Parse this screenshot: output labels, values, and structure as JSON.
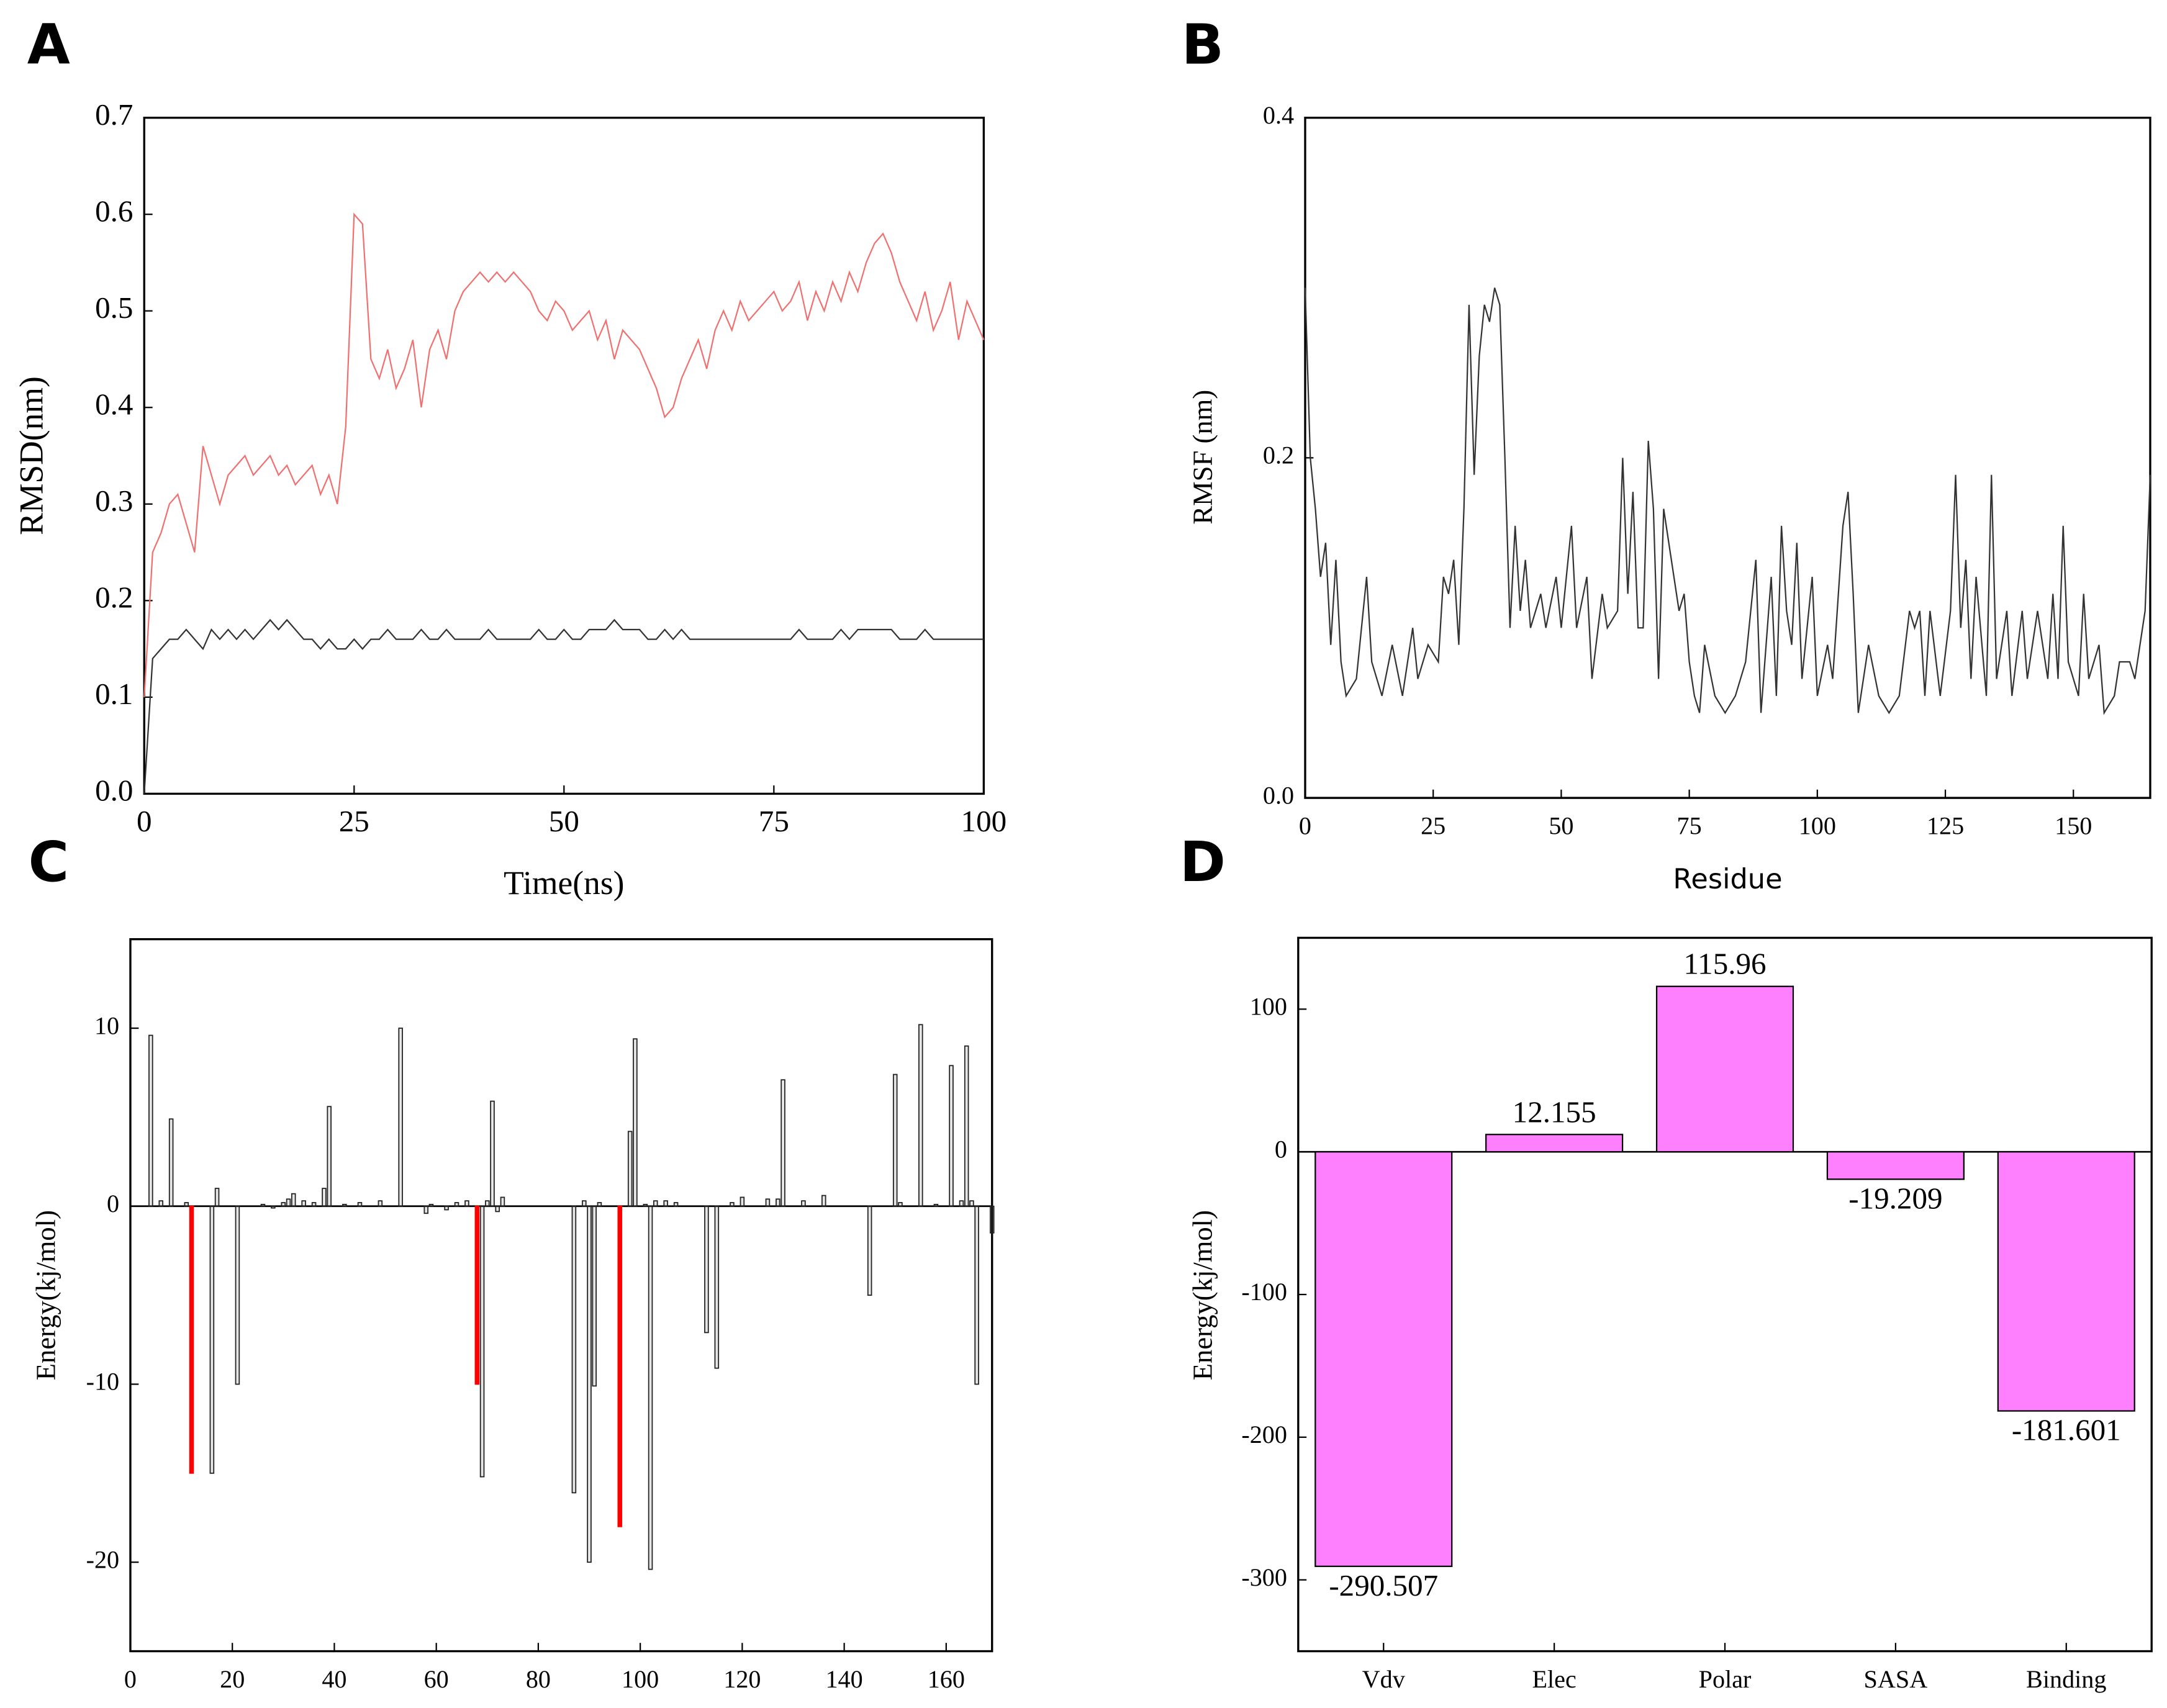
{
  "chart_data": [
    {
      "type": "line",
      "panel_label": "A",
      "xlabel": "Time(ns)",
      "ylabel": "RMSD(nm)",
      "xlim": [
        0,
        100
      ],
      "ylim": [
        0,
        0.7
      ],
      "xticks": [
        0,
        25,
        50,
        75,
        100
      ],
      "yticks": [
        {
          "value": 0,
          "label": "0.0"
        },
        0.1,
        0.2,
        0.3,
        0.4,
        0.5,
        0.6,
        0.7
      ],
      "x": [
        0,
        1,
        2,
        3,
        4,
        5,
        6,
        7,
        8,
        9,
        10,
        11,
        12,
        13,
        14,
        15,
        16,
        17,
        18,
        19,
        20,
        21,
        22,
        23,
        24,
        25,
        26,
        27,
        28,
        29,
        30,
        31,
        32,
        33,
        34,
        35,
        36,
        37,
        38,
        39,
        40,
        41,
        42,
        43,
        44,
        45,
        46,
        47,
        48,
        49,
        50,
        51,
        52,
        53,
        54,
        55,
        56,
        57,
        58,
        59,
        60,
        61,
        62,
        63,
        64,
        65,
        66,
        67,
        68,
        69,
        70,
        71,
        72,
        73,
        74,
        75,
        76,
        77,
        78,
        79,
        80,
        81,
        82,
        83,
        84,
        85,
        86,
        87,
        88,
        89,
        90,
        91,
        92,
        93,
        94,
        95,
        96,
        97,
        98,
        99,
        100
      ],
      "series": [
        {
          "color": "#f07070",
          "values": [
            0.1,
            0.25,
            0.27,
            0.3,
            0.31,
            0.28,
            0.25,
            0.36,
            0.33,
            0.3,
            0.33,
            0.34,
            0.35,
            0.33,
            0.34,
            0.35,
            0.33,
            0.34,
            0.32,
            0.33,
            0.34,
            0.31,
            0.33,
            0.3,
            0.38,
            0.6,
            0.59,
            0.45,
            0.43,
            0.46,
            0.42,
            0.44,
            0.47,
            0.4,
            0.46,
            0.48,
            0.45,
            0.5,
            0.52,
            0.53,
            0.54,
            0.53,
            0.54,
            0.53,
            0.54,
            0.53,
            0.52,
            0.5,
            0.49,
            0.51,
            0.5,
            0.48,
            0.49,
            0.5,
            0.47,
            0.49,
            0.45,
            0.48,
            0.47,
            0.46,
            0.44,
            0.42,
            0.39,
            0.4,
            0.43,
            0.45,
            0.47,
            0.44,
            0.48,
            0.5,
            0.48,
            0.51,
            0.49,
            0.5,
            0.51,
            0.52,
            0.5,
            0.51,
            0.53,
            0.49,
            0.52,
            0.5,
            0.53,
            0.51,
            0.54,
            0.52,
            0.55,
            0.57,
            0.58,
            0.56,
            0.53,
            0.51,
            0.49,
            0.52,
            0.48,
            0.5,
            0.53,
            0.47,
            0.51,
            0.49,
            0.47
          ]
        },
        {
          "color": "#333333",
          "values": [
            0.0,
            0.14,
            0.15,
            0.16,
            0.16,
            0.17,
            0.16,
            0.15,
            0.17,
            0.16,
            0.17,
            0.16,
            0.17,
            0.16,
            0.17,
            0.18,
            0.17,
            0.18,
            0.17,
            0.16,
            0.16,
            0.15,
            0.16,
            0.15,
            0.15,
            0.16,
            0.15,
            0.16,
            0.16,
            0.17,
            0.16,
            0.16,
            0.16,
            0.17,
            0.16,
            0.16,
            0.17,
            0.16,
            0.16,
            0.16,
            0.16,
            0.17,
            0.16,
            0.16,
            0.16,
            0.16,
            0.16,
            0.17,
            0.16,
            0.16,
            0.17,
            0.16,
            0.16,
            0.17,
            0.17,
            0.17,
            0.18,
            0.17,
            0.17,
            0.17,
            0.16,
            0.16,
            0.17,
            0.16,
            0.17,
            0.16,
            0.16,
            0.16,
            0.16,
            0.16,
            0.16,
            0.16,
            0.16,
            0.16,
            0.16,
            0.16,
            0.16,
            0.16,
            0.17,
            0.16,
            0.16,
            0.16,
            0.16,
            0.17,
            0.16,
            0.17,
            0.17,
            0.17,
            0.17,
            0.17,
            0.16,
            0.16,
            0.16,
            0.17,
            0.16,
            0.16,
            0.16,
            0.16,
            0.16,
            0.16,
            0.16
          ]
        }
      ]
    },
    {
      "type": "line",
      "panel_label": "B",
      "xlabel": "Residue",
      "ylabel": "RMSF (nm)",
      "xlim": [
        0,
        165
      ],
      "ylim": [
        0,
        0.4
      ],
      "xticks": [
        0,
        25,
        50,
        75,
        100,
        125,
        150
      ],
      "yticks": [
        {
          "value": 0,
          "label": "0.0"
        },
        0.2,
        0.4
      ],
      "x": [
        0,
        1,
        2,
        3,
        4,
        5,
        6,
        7,
        8,
        10,
        12,
        13,
        15,
        17,
        19,
        21,
        22,
        24,
        26,
        27,
        28,
        29,
        30,
        31,
        32,
        33,
        34,
        35,
        36,
        37,
        38,
        39,
        40,
        41,
        42,
        43,
        44,
        46,
        47,
        49,
        50,
        52,
        53,
        55,
        56,
        58,
        59,
        61,
        62,
        63,
        64,
        65,
        66,
        67,
        68,
        69,
        70,
        71,
        72,
        73,
        74,
        75,
        76,
        77,
        78,
        80,
        82,
        84,
        86,
        88,
        89,
        91,
        92,
        93,
        94,
        95,
        96,
        97,
        99,
        100,
        102,
        103,
        105,
        106,
        107,
        108,
        110,
        112,
        114,
        116,
        118,
        119,
        120,
        121,
        122,
        124,
        126,
        127,
        128,
        129,
        130,
        131,
        133,
        134,
        135,
        137,
        138,
        140,
        141,
        143,
        145,
        146,
        147,
        148,
        149,
        151,
        152,
        153,
        155,
        156,
        158,
        159,
        161,
        162,
        163,
        164,
        165
      ],
      "series": [
        {
          "color": "#333333",
          "values": [
            0.3,
            0.2,
            0.17,
            0.13,
            0.15,
            0.09,
            0.14,
            0.08,
            0.06,
            0.07,
            0.13,
            0.08,
            0.06,
            0.09,
            0.06,
            0.1,
            0.07,
            0.09,
            0.08,
            0.13,
            0.12,
            0.14,
            0.09,
            0.17,
            0.29,
            0.19,
            0.26,
            0.29,
            0.28,
            0.3,
            0.29,
            0.2,
            0.1,
            0.16,
            0.11,
            0.14,
            0.1,
            0.12,
            0.1,
            0.13,
            0.1,
            0.16,
            0.1,
            0.13,
            0.07,
            0.12,
            0.1,
            0.11,
            0.2,
            0.12,
            0.18,
            0.1,
            0.1,
            0.21,
            0.17,
            0.07,
            0.17,
            0.15,
            0.13,
            0.11,
            0.12,
            0.08,
            0.06,
            0.05,
            0.09,
            0.06,
            0.05,
            0.06,
            0.08,
            0.14,
            0.05,
            0.13,
            0.06,
            0.16,
            0.11,
            0.09,
            0.15,
            0.07,
            0.13,
            0.06,
            0.09,
            0.07,
            0.16,
            0.18,
            0.12,
            0.05,
            0.09,
            0.06,
            0.05,
            0.06,
            0.11,
            0.1,
            0.11,
            0.06,
            0.11,
            0.06,
            0.11,
            0.19,
            0.1,
            0.14,
            0.07,
            0.13,
            0.06,
            0.19,
            0.07,
            0.11,
            0.06,
            0.11,
            0.07,
            0.11,
            0.07,
            0.12,
            0.07,
            0.16,
            0.08,
            0.06,
            0.12,
            0.07,
            0.09,
            0.05,
            0.06,
            0.08,
            0.08,
            0.07,
            0.09,
            0.11,
            0.19
          ]
        }
      ]
    },
    {
      "type": "bar",
      "panel_label": "C",
      "ylabel": "Energy(kj/mol)",
      "xlim": [
        0,
        169
      ],
      "ylim": [
        -25,
        15
      ],
      "xticks": [
        0,
        20,
        40,
        60,
        80,
        100,
        120,
        140,
        160
      ],
      "yticks": [
        -20,
        -10,
        0,
        10
      ],
      "x": [
        4,
        6,
        8,
        11,
        12,
        16,
        17,
        21,
        26,
        28,
        30,
        31,
        32,
        34,
        36,
        38,
        39,
        42,
        45,
        49,
        53,
        58,
        59,
        62,
        64,
        66,
        68,
        69,
        70,
        71,
        72,
        73,
        87,
        89,
        90,
        91,
        92,
        96,
        98,
        99,
        101,
        102,
        103,
        105,
        107,
        113,
        115,
        118,
        120,
        125,
        127,
        128,
        132,
        136,
        145,
        150,
        151,
        155,
        158,
        161,
        163,
        164,
        165,
        166,
        169
      ],
      "values": [
        9.6,
        0.3,
        4.9,
        0.2,
        -15,
        -15,
        1.0,
        -10,
        0.1,
        -0.1,
        0.2,
        0.4,
        0.7,
        0.3,
        0.2,
        1.0,
        5.6,
        0.1,
        0.2,
        0.3,
        10,
        -0.4,
        0.1,
        -0.2,
        0.2,
        0.3,
        -10,
        -15.2,
        0.3,
        5.9,
        -0.3,
        0.5,
        -16.1,
        0.3,
        -20,
        -10.1,
        0.2,
        -18,
        4.2,
        9.4,
        0.1,
        -20.4,
        0.3,
        0.3,
        0.2,
        -7.1,
        -9.1,
        0.2,
        0.5,
        0.4,
        0.4,
        7.1,
        0.3,
        0.6,
        -5,
        7.4,
        0.2,
        10.2,
        0.1,
        7.9,
        0.3,
        9,
        0.3,
        -10,
        -1.5
      ],
      "colors": [
        "#555555",
        "#555555",
        "#555555",
        "#555555",
        "#ff0000",
        "#555555",
        "#555555",
        "#555555",
        "#555555",
        "#555555",
        "#555555",
        "#555555",
        "#555555",
        "#555555",
        "#555555",
        "#555555",
        "#555555",
        "#555555",
        "#555555",
        "#555555",
        "#555555",
        "#555555",
        "#555555",
        "#555555",
        "#555555",
        "#555555",
        "#ff0000",
        "#555555",
        "#555555",
        "#555555",
        "#555555",
        "#555555",
        "#555555",
        "#555555",
        "#555555",
        "#555555",
        "#555555",
        "#ff0000",
        "#555555",
        "#555555",
        "#555555",
        "#555555",
        "#555555",
        "#555555",
        "#555555",
        "#555555",
        "#555555",
        "#555555",
        "#555555",
        "#555555",
        "#555555",
        "#555555",
        "#555555",
        "#555555",
        "#555555",
        "#555555",
        "#555555",
        "#555555",
        "#555555",
        "#555555",
        "#555555",
        "#555555",
        "#555555",
        "#555555",
        "#555555"
      ]
    },
    {
      "type": "bar",
      "panel_label": "D",
      "ylabel": "Energy(kj/mol)",
      "categories": [
        "Vdv",
        "Elec",
        "Polar",
        "SASA",
        "Binding"
      ],
      "values": [
        -290.507,
        12.155,
        115.96,
        -19.209,
        -181.601
      ],
      "color": "#ff80ff",
      "ylim": [
        -350,
        150
      ],
      "yticks": [
        -300,
        -200,
        -100,
        0,
        100
      ]
    }
  ]
}
